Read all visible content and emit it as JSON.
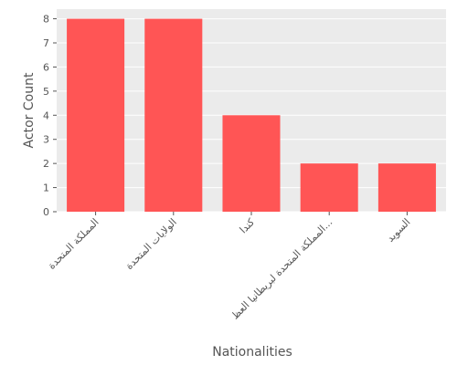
{
  "chart_data": {
    "type": "bar",
    "categories": [
      "المملكة المتحدة",
      "الولايات المتحدة",
      "كندا",
      "المملكة المتحدة لبريطانيا العظ...",
      "السويد"
    ],
    "values": [
      8,
      8,
      4,
      2,
      2
    ],
    "xlabel": "Nationalities",
    "ylabel": "Actor Count",
    "ylim": [
      0,
      8.4
    ],
    "yticks": [
      0,
      1,
      2,
      3,
      4,
      5,
      6,
      7,
      8
    ],
    "grid": true,
    "colors": {
      "bar": "#ff5555",
      "background": "#ebebeb",
      "grid": "#ffffff",
      "text": "#555555"
    }
  }
}
